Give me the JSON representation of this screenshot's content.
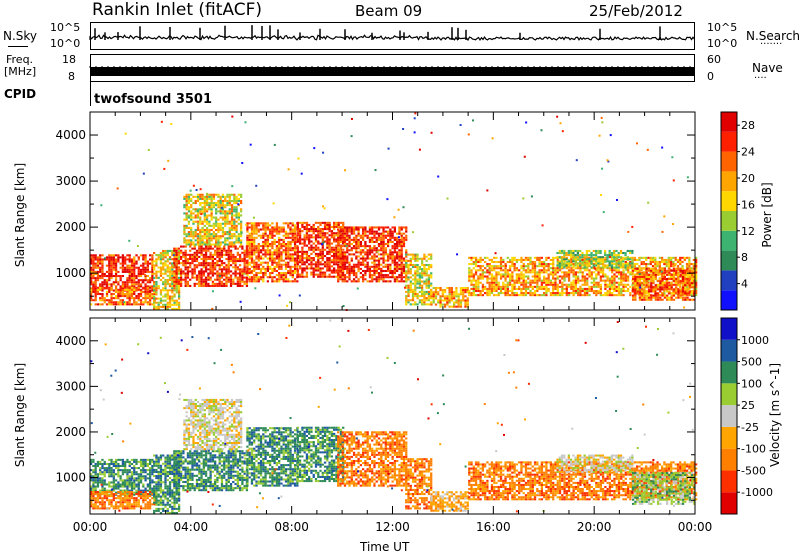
{
  "header": {
    "station": "Rankin Inlet (fitACF)",
    "beam": "Beam 09",
    "date": "25/Feb/2012"
  },
  "top_panels": {
    "nsky_label": "N.Sky",
    "nsky_ticks": [
      "10^5",
      "10^0"
    ],
    "nsearch_label": "N.Search",
    "nsearch_ticks": [
      "10^5",
      "10^0"
    ],
    "freq_label": "Freq.",
    "freq_unit": "[MHz]",
    "freq_ticks": [
      "18",
      "8"
    ],
    "nave_label": "Nave",
    "nave_ticks": [
      "60",
      "0"
    ],
    "cpid_label": "CPID",
    "cpid_value": "twofsound 3501"
  },
  "colors": {
    "power_scale": [
      "#1010ff",
      "#2040c0",
      "#2e8b57",
      "#3cb371",
      "#9acd32",
      "#ffd700",
      "#ffa500",
      "#ff6400",
      "#ff2000",
      "#e00000"
    ],
    "velocity_scale": [
      "#e00000",
      "#ff3000",
      "#ff7f00",
      "#ffa500",
      "#c8c8c8",
      "#9acd32",
      "#2e8b57",
      "#1e5aa0",
      "#1010c8"
    ]
  },
  "chart_data": [
    {
      "type": "heatmap",
      "panel": "power",
      "xlabel": "",
      "ylabel": "Slant Range [km]",
      "xlim": [
        0,
        24
      ],
      "ylim": [
        200,
        4500
      ],
      "y_ticks": [
        "4000",
        "3000",
        "2000",
        "1000"
      ],
      "colorbar_label": "Power [dB]",
      "colorbar_ticks": [
        "28",
        "24",
        "20",
        "16",
        "12",
        "8",
        "4"
      ],
      "colorbar_range": [
        0,
        30
      ]
    },
    {
      "type": "heatmap",
      "panel": "velocity",
      "xlabel": "Time UT",
      "ylabel": "Slant Range [km]",
      "xlim": [
        0,
        24
      ],
      "ylim": [
        200,
        4500
      ],
      "x_ticks": [
        "00:00",
        "04:00",
        "08:00",
        "12:00",
        "16:00",
        "20:00",
        "00:00"
      ],
      "y_ticks": [
        "4000",
        "3000",
        "2000",
        "1000"
      ],
      "colorbar_label": "Velocity [m s^-1]",
      "colorbar_ticks": [
        "1000",
        "500",
        "100",
        "25",
        "-25",
        "-100",
        "-500",
        "-1000"
      ]
    }
  ]
}
